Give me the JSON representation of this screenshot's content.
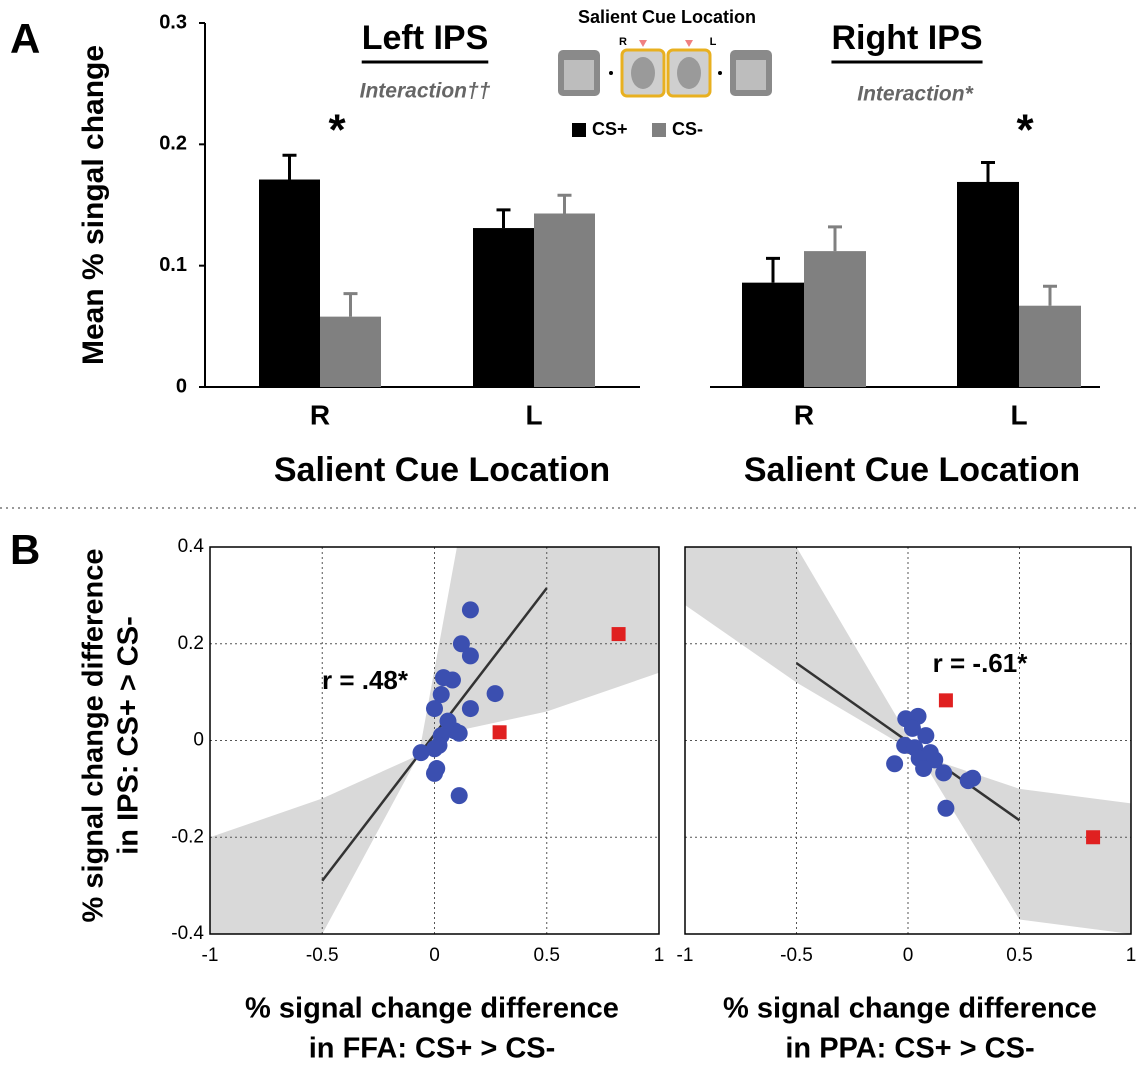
{
  "panel_labels": [
    "A",
    "B"
  ],
  "inset": {
    "title": "Salient Cue Location",
    "left_label": "R",
    "right_label": "L"
  },
  "chart_data": [
    {
      "type": "bar",
      "title": "Left IPS",
      "subtitle": "Interaction††",
      "annotation": "*",
      "categories": [
        "R",
        "L"
      ],
      "xlabel": "Salient Cue Location",
      "ylabel": "Mean % singal change",
      "series": [
        {
          "name": "CS+",
          "color": "#000000",
          "values": [
            0.171,
            0.131
          ],
          "errors": [
            0.02,
            0.015
          ]
        },
        {
          "name": "CS-",
          "color": "#808080",
          "values": [
            0.058,
            0.143
          ],
          "errors": [
            0.019,
            0.015
          ]
        }
      ],
      "ylim": [
        0,
        0.3
      ],
      "yticks": [
        0,
        0.1,
        0.2,
        0.3
      ]
    },
    {
      "type": "bar",
      "title": "Right IPS",
      "subtitle": "Interaction*",
      "annotation": "*",
      "categories": [
        "R",
        "L"
      ],
      "xlabel": "Salient Cue Location",
      "series": [
        {
          "color": "#000000",
          "values": [
            0.086,
            0.169
          ],
          "errors": [
            0.02,
            0.016
          ]
        },
        {
          "color": "#808080",
          "values": [
            0.112,
            0.067
          ],
          "errors": [
            0.02,
            0.016
          ]
        }
      ],
      "ylim": [
        0,
        0.3
      ]
    },
    {
      "type": "scatter",
      "annotation": "r = .48*",
      "xlabel": [
        "% signal change difference",
        "in FFA: CS+ > CS-"
      ],
      "ylabel": [
        "% signal change difference",
        "in IPS: CS+ > CS-"
      ],
      "xlim": [
        -1,
        1
      ],
      "xticks": [
        -1,
        -0.5,
        0,
        0.5,
        1
      ],
      "ylim": [
        -0.4,
        0.4
      ],
      "yticks": [
        -0.4,
        -0.2,
        0,
        0.2,
        0.4
      ],
      "grid": true,
      "show_ytick_labels": true,
      "series": [
        {
          "color": "#3b4fb0",
          "marker": "circle",
          "x": [
            0.16,
            0.12,
            0.16,
            0.04,
            0.08,
            0.03,
            0.16,
            0.27,
            0,
            0.06,
            0.09,
            0.11,
            0.03,
            0.02,
            0,
            -0.06,
            0.01,
            0,
            0.11
          ],
          "y": [
            0.27,
            0.2,
            0.175,
            0.13,
            0.125,
            0.095,
            0.066,
            0.097,
            0.066,
            0.04,
            0.02,
            0.015,
            0.01,
            -0.01,
            -0.017,
            -0.025,
            -0.058,
            -0.068,
            -0.114
          ]
        },
        {
          "color": "#e02020",
          "marker": "square",
          "x": [
            0.29,
            0.82
          ],
          "y": [
            0.017,
            0.22
          ]
        }
      ],
      "fit_line": {
        "x": [
          -0.5,
          0.5
        ],
        "y": [
          -0.29,
          0.315
        ]
      },
      "ci_band": {
        "x": [
          -1,
          -0.5,
          -0.07,
          0.1,
          0.5,
          1
        ],
        "upper": [
          -0.2,
          -0.12,
          -0.03,
          0.4,
          0.4,
          0.4
        ],
        "lower": [
          -0.4,
          -0.4,
          -0.03,
          0.02,
          0.06,
          0.14
        ]
      }
    },
    {
      "type": "scatter",
      "annotation": "r = -.61*",
      "xlabel": [
        "% signal change difference",
        "in PPA: CS+ > CS-"
      ],
      "xlim": [
        -1,
        1
      ],
      "xticks": [
        -1,
        -0.5,
        0,
        0.5,
        1
      ],
      "ylim": [
        -0.4,
        0.4
      ],
      "yticks": [
        -0.4,
        -0.2,
        0,
        0.2,
        0.4
      ],
      "grid": true,
      "show_ytick_labels": false,
      "series": [
        {
          "color": "#3b4fb0",
          "marker": "circle",
          "x": [
            0.045,
            -0.01,
            0.02,
            0.08,
            -0.015,
            0.03,
            0.1,
            0.05,
            0.12,
            -0.06,
            0.07,
            0.16,
            0.29,
            0.27,
            0.17
          ],
          "y": [
            0.05,
            0.045,
            0.025,
            0.01,
            -0.01,
            -0.015,
            -0.025,
            -0.037,
            -0.04,
            -0.048,
            -0.058,
            -0.067,
            -0.078,
            -0.083,
            -0.14
          ]
        },
        {
          "color": "#e02020",
          "marker": "square",
          "x": [
            0.17,
            0.83
          ],
          "y": [
            0.083,
            -0.2
          ]
        }
      ],
      "fit_line": {
        "x": [
          -0.5,
          0.5
        ],
        "y": [
          0.16,
          -0.165
        ]
      },
      "ci_band": {
        "x": [
          -1,
          -0.5,
          0.05,
          0.5,
          1
        ],
        "upper": [
          0.4,
          0.4,
          -0.03,
          -0.1,
          -0.13
        ],
        "lower": [
          0.28,
          0.12,
          -0.03,
          -0.37,
          -0.4
        ]
      }
    }
  ]
}
